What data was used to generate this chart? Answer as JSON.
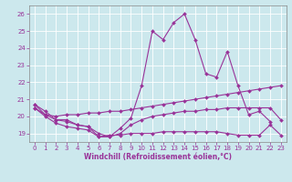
{
  "xlabel": "Windchill (Refroidissement éolien,°C)",
  "x_values": [
    0,
    1,
    2,
    3,
    4,
    5,
    6,
    7,
    8,
    9,
    10,
    11,
    12,
    13,
    14,
    15,
    16,
    17,
    18,
    19,
    20,
    21,
    22,
    23
  ],
  "line1_y": [
    20.7,
    20.3,
    19.8,
    19.8,
    19.5,
    19.4,
    18.8,
    18.8,
    19.3,
    19.9,
    21.8,
    25.0,
    24.5,
    25.5,
    26.0,
    24.5,
    22.5,
    22.3,
    23.8,
    21.8,
    20.1,
    20.3,
    19.7,
    null
  ],
  "line2_y": [
    20.7,
    20.1,
    20.0,
    20.1,
    20.1,
    20.2,
    20.2,
    20.3,
    20.3,
    20.4,
    20.5,
    20.6,
    20.7,
    20.8,
    20.9,
    21.0,
    21.1,
    21.2,
    21.3,
    21.4,
    21.5,
    21.6,
    21.7,
    21.8
  ],
  "line3_y": [
    20.5,
    20.1,
    19.8,
    19.7,
    19.5,
    19.4,
    19.0,
    18.8,
    19.0,
    19.5,
    19.8,
    20.0,
    20.1,
    20.2,
    20.3,
    20.3,
    20.4,
    20.4,
    20.5,
    20.5,
    20.5,
    20.5,
    20.5,
    19.8
  ],
  "line4_y": [
    20.5,
    20.0,
    19.6,
    19.4,
    19.3,
    19.2,
    18.8,
    18.9,
    18.9,
    19.0,
    19.0,
    19.0,
    19.1,
    19.1,
    19.1,
    19.1,
    19.1,
    19.1,
    19.0,
    18.9,
    18.9,
    18.9,
    19.5,
    18.9
  ],
  "ylim": [
    18.5,
    26.5
  ],
  "yticks": [
    19,
    20,
    21,
    22,
    23,
    24,
    25,
    26
  ],
  "xticks": [
    0,
    1,
    2,
    3,
    4,
    5,
    6,
    7,
    8,
    9,
    10,
    11,
    12,
    13,
    14,
    15,
    16,
    17,
    18,
    19,
    20,
    21,
    22,
    23
  ],
  "line_color": "#993399",
  "bg_color": "#cce8ed",
  "grid_color": "#aacccc",
  "marker": "D",
  "marker_size": 2.0,
  "line_width": 0.8
}
